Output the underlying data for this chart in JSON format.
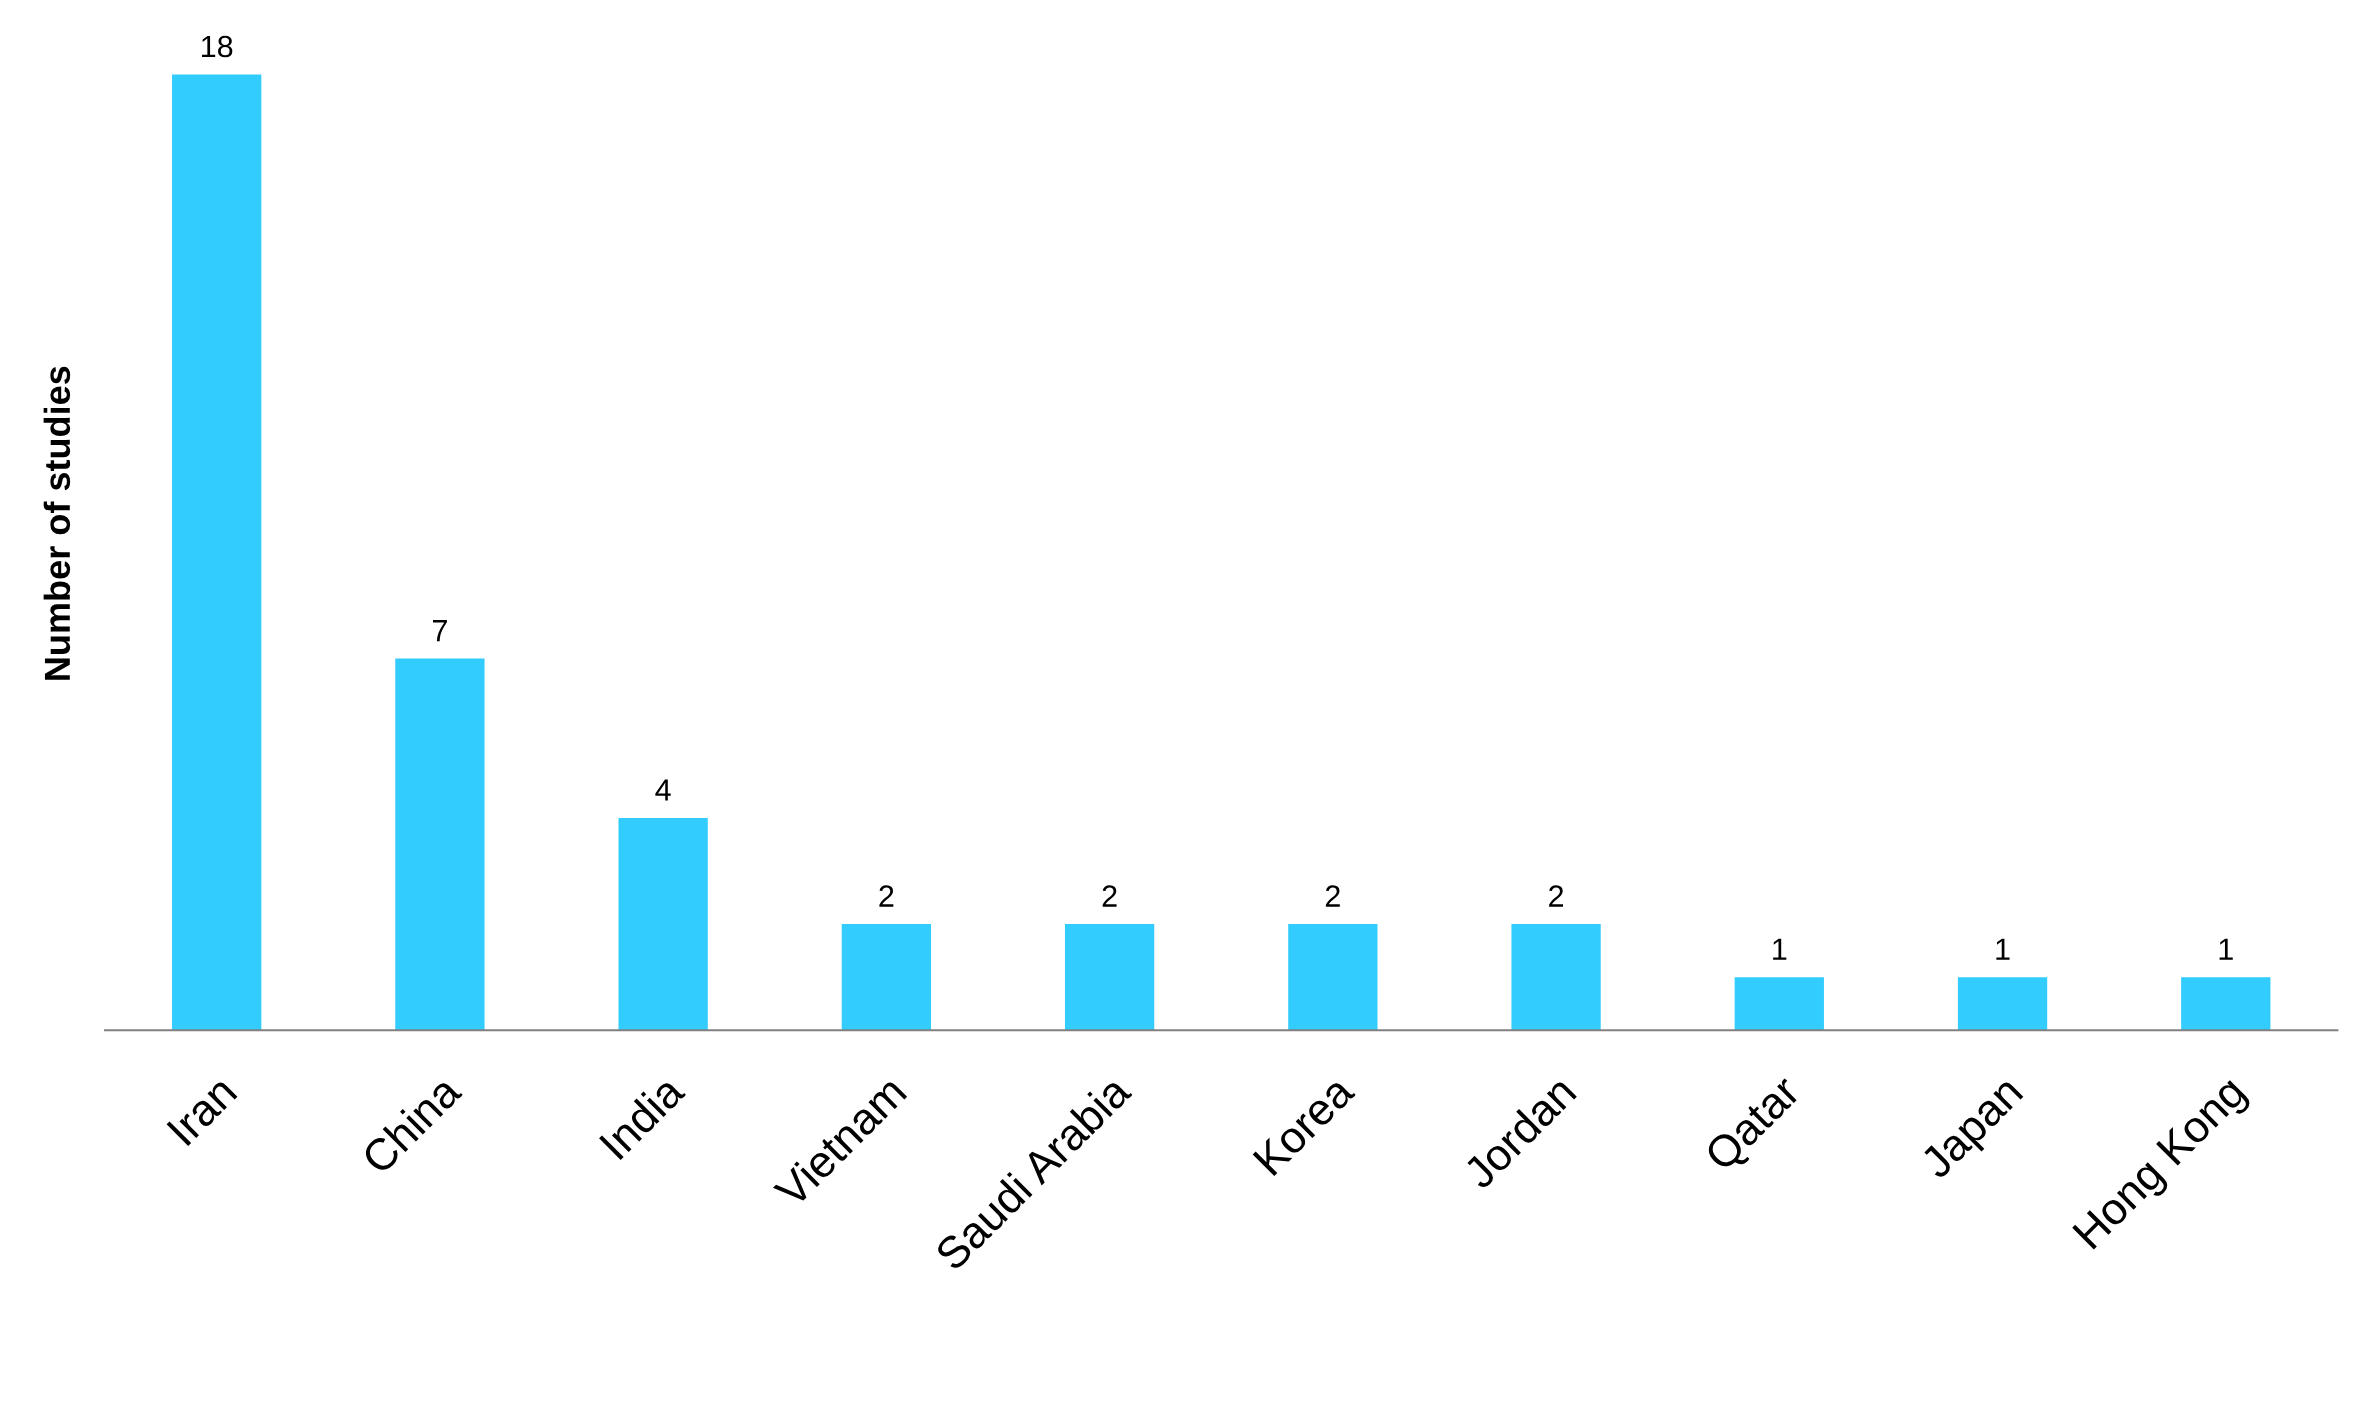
{
  "chart_data": {
    "type": "bar",
    "ylabel": "Number of studies",
    "categories": [
      "Iran",
      "China",
      "India",
      "Vietnam",
      "Saudi Arabia",
      "Korea",
      "Jordan",
      "Qatar",
      "Japan",
      "Hong Kong"
    ],
    "values": [
      18,
      7,
      4,
      2,
      2,
      2,
      2,
      1,
      1,
      1
    ],
    "color": "#33ccff",
    "data_labels": true,
    "grid": false,
    "legend": false
  }
}
